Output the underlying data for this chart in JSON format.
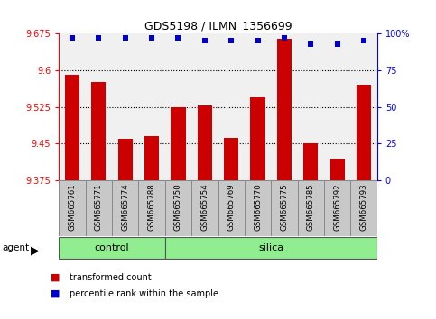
{
  "title": "GDS5198 / ILMN_1356699",
  "samples": [
    "GSM665761",
    "GSM665771",
    "GSM665774",
    "GSM665788",
    "GSM665750",
    "GSM665754",
    "GSM665769",
    "GSM665770",
    "GSM665775",
    "GSM665785",
    "GSM665792",
    "GSM665793"
  ],
  "transformed_count": [
    9.59,
    9.575,
    9.46,
    9.465,
    9.525,
    9.528,
    9.462,
    9.545,
    9.665,
    9.45,
    9.42,
    9.57
  ],
  "percentile_rank": [
    97,
    97,
    97,
    97,
    97,
    95,
    95,
    95,
    97,
    93,
    93,
    95
  ],
  "control_count": 4,
  "silica_count": 8,
  "bar_color": "#cc0000",
  "dot_color": "#0000cc",
  "ymin": 9.375,
  "ymax": 9.675,
  "yticks_left": [
    9.375,
    9.45,
    9.525,
    9.6,
    9.675
  ],
  "yticks_right": [
    0,
    25,
    50,
    75,
    100
  ],
  "hlines": [
    9.45,
    9.525,
    9.6
  ],
  "legend_items": [
    "transformed count",
    "percentile rank within the sample"
  ],
  "background_color": "#ffffff",
  "group_bg": "#90EE90",
  "cell_bg": "#c8c8c8",
  "cell_border": "#888888"
}
